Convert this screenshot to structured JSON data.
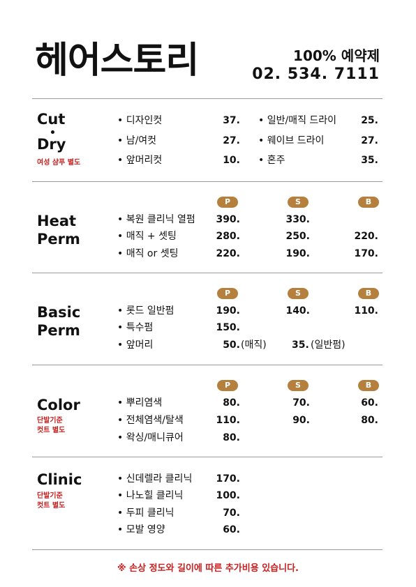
{
  "header": {
    "title": "헤어스토리",
    "tagline": "100% 예약제",
    "phone": "02. 534. 7111"
  },
  "cut": {
    "title1": "Cut",
    "title2": "Dry",
    "note": "여성 샴푸 별도",
    "items": [
      {
        "name": "• 디자인컷",
        "price": "37."
      },
      {
        "name": "• 남/여컷",
        "price": "27."
      },
      {
        "name": "• 앞머리컷",
        "price": "10."
      }
    ],
    "dry_items": [
      {
        "name": "• 일반/매직 드라이",
        "price": "25."
      },
      {
        "name": "• 웨이브 드라이",
        "price": "27."
      },
      {
        "name": "• 혼주",
        "price": "35."
      }
    ]
  },
  "badges": {
    "p": "P",
    "s": "S",
    "b": "B"
  },
  "heat": {
    "title1": "Heat",
    "title2": "Perm",
    "items": [
      {
        "name": "• 복원 클리닉 열펌",
        "p": "390.",
        "s": "330.",
        "b": ""
      },
      {
        "name": "• 매직 + 셋팅",
        "p": "280.",
        "s": "250.",
        "b": "220."
      },
      {
        "name": "• 매직 or 셋팅",
        "p": "220.",
        "s": "190.",
        "b": "170."
      }
    ]
  },
  "basic": {
    "title1": "Basic",
    "title2": "Perm",
    "items": [
      {
        "name": "• 롯드 일반펌",
        "p": "190.",
        "s": "140.",
        "b": "110."
      },
      {
        "name": "• 특수펌",
        "p": "150.",
        "s": "",
        "b": ""
      },
      {
        "name": "• 앞머리",
        "p": "50.",
        "p_note": "(매직)",
        "s": "35.",
        "s_note": "(일반펌)"
      }
    ]
  },
  "color": {
    "title": "Color",
    "note1": "단발기준",
    "note2": "컷트 별도",
    "items": [
      {
        "name": "• 뿌리염색",
        "p": "80.",
        "s": "70.",
        "b": "60."
      },
      {
        "name": "• 전체염색/탈색",
        "p": "110.",
        "s": "90.",
        "b": "80."
      },
      {
        "name": "• 왁싱/매니큐어",
        "p": "80.",
        "s": "",
        "b": ""
      }
    ]
  },
  "clinic": {
    "title": "Clinic",
    "note1": "단발기준",
    "note2": "컷트 별도",
    "items": [
      {
        "name": "• 신데렐라 클리닉",
        "price": "170."
      },
      {
        "name": "• 나노힐 클리닉",
        "price": "100."
      },
      {
        "name": "• 두피 클리닉",
        "price": "70."
      },
      {
        "name": "• 모발 영양",
        "price": "60."
      }
    ]
  },
  "footer": "※ 손상 정도와 길이에 따른 추가비용 있습니다.",
  "colors": {
    "accent_red": "#c8201f",
    "badge_brown": "#b5803d"
  }
}
